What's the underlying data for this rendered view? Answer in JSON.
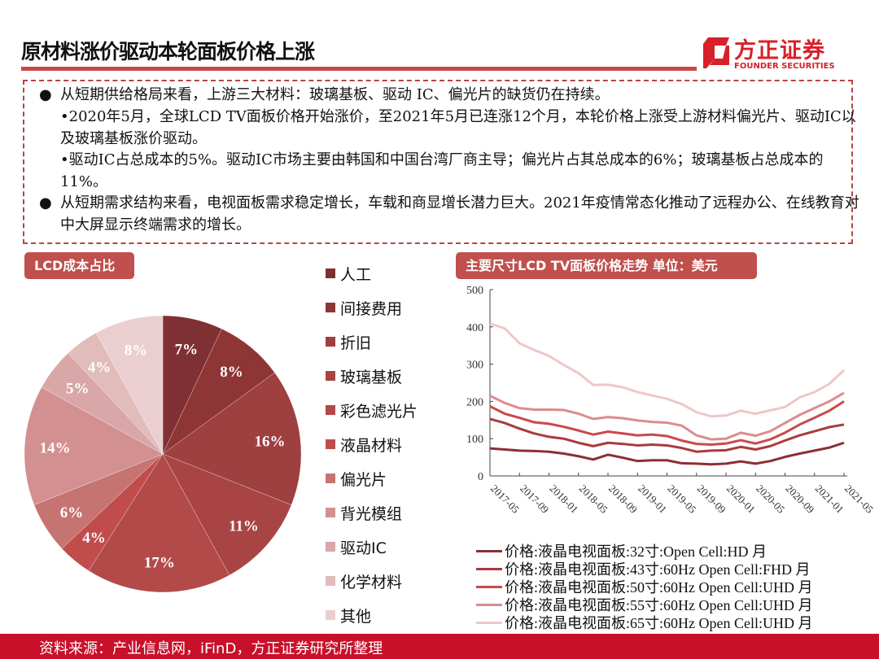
{
  "header": {
    "title": "原材料涨价驱动本轮面板价格上涨",
    "logo_cn": "方正证券",
    "logo_en": "FOUNDER SECURITIES"
  },
  "summary": {
    "p1": "从短期供给格局来看，上游三大材料：玻璃基板、驱动 IC、偏光片的缺货仍在持续。",
    "p2": "•2020年5月，全球LCD TV面板价格开始涨价，至2021年5月已连涨12个月，本轮价格上涨受上游材料偏光片、驱动IC以及玻璃基板涨价驱动。",
    "p3": "•驱动IC占总成本的5%。驱动IC市场主要由韩国和中国台湾厂商主导；偏光片占其总成本的6%；玻璃基板占总成本的11%。",
    "p4": "从短期需求结构来看，电视面板需求稳定增长，车载和商显增长潜力巨大。2021年疫情常态化推动了远程办公、在线教育对中大屏显示终端需求的增长。"
  },
  "footer": {
    "source": "资料来源：产业信息网，iFinD，方正证券研究所整理"
  },
  "chart_data": [
    {
      "type": "pie",
      "title": "LCD成本占比",
      "legend_position": "right",
      "categories": [
        "人工",
        "间接费用",
        "折旧",
        "玻璃基板",
        "彩色滤光片",
        "液晶材料",
        "偏光片",
        "背光模组",
        "驱动IC",
        "化学材料",
        "其他"
      ],
      "values": [
        7,
        8,
        16,
        11,
        17,
        4,
        6,
        14,
        5,
        4,
        8
      ],
      "labels": [
        "7%",
        "8%",
        "16%",
        "11%",
        "17%",
        "4%",
        "6%",
        "14%",
        "5%",
        "4%",
        "8%"
      ],
      "colors": [
        "#7f3032",
        "#8e3536",
        "#9e3f40",
        "#a94444",
        "#b24a4a",
        "#c04d4c",
        "#c57472",
        "#d29090",
        "#d9a7a7",
        "#e2bbbb",
        "#ebcfd0"
      ]
    },
    {
      "type": "line",
      "title": "主要尺寸LCD TV面板价格走势 单位：美元",
      "legend_position": "bottom",
      "grid": false,
      "ylim": [
        0,
        500
      ],
      "yticks": [
        "0",
        "100",
        "200",
        "300",
        "400",
        "500"
      ],
      "xticks": [
        "2017-05",
        "2017-09",
        "2018-01",
        "2018-05",
        "2018-09",
        "2019-01",
        "2019-05",
        "2019-09",
        "2020-01",
        "2020-05",
        "2020-09",
        "2021-01",
        "2021-05"
      ],
      "x": [
        "2017-05",
        "2017-07",
        "2017-09",
        "2017-11",
        "2018-01",
        "2018-03",
        "2018-05",
        "2018-07",
        "2018-09",
        "2018-11",
        "2019-01",
        "2019-03",
        "2019-05",
        "2019-07",
        "2019-09",
        "2019-11",
        "2020-01",
        "2020-03",
        "2020-05",
        "2020-07",
        "2020-09",
        "2020-11",
        "2021-01",
        "2021-03",
        "2021-05"
      ],
      "series": [
        {
          "name": "价格:液晶电视面板:32寸:Open Cell:HD 月",
          "color": "#8b3033",
          "values": [
            74,
            71,
            68,
            67,
            65,
            60,
            53,
            44,
            57,
            49,
            40,
            42,
            42,
            34,
            33,
            31,
            33,
            39,
            33,
            40,
            51,
            60,
            68,
            76,
            89
          ]
        },
        {
          "name": "价格:液晶电视面板:43寸:60Hz Open Cell:FHD 月",
          "color": "#a93b3e",
          "values": [
            153,
            142,
            127,
            114,
            105,
            100,
            89,
            80,
            89,
            86,
            82,
            84,
            82,
            75,
            65,
            68,
            69,
            78,
            71,
            80,
            95,
            109,
            120,
            131,
            138
          ]
        },
        {
          "name": "价格:液晶电视面板:50寸:60Hz Open Cell:UHD 月",
          "color": "#c9494b",
          "values": [
            187,
            167,
            156,
            144,
            140,
            132,
            122,
            111,
            119,
            114,
            109,
            111,
            107,
            95,
            86,
            84,
            87,
            96,
            87,
            98,
            116,
            138,
            156,
            175,
            200
          ]
        },
        {
          "name": "价格:液晶电视面板:55寸:60Hz Open Cell:UHD 月",
          "color": "#dc8c8d",
          "values": [
            215,
            196,
            182,
            178,
            178,
            177,
            167,
            153,
            158,
            155,
            149,
            145,
            143,
            135,
            109,
            98,
            100,
            116,
            108,
            120,
            142,
            164,
            182,
            200,
            223
          ]
        },
        {
          "name": "价格:液晶电视面板:65寸:60Hz Open Cell:UHD 月",
          "color": "#eec7c8",
          "values": [
            409,
            396,
            356,
            338,
            322,
            298,
            276,
            244,
            245,
            238,
            225,
            216,
            207,
            193,
            171,
            160,
            162,
            175,
            167,
            176,
            185,
            211,
            225,
            247,
            284
          ]
        }
      ]
    }
  ]
}
